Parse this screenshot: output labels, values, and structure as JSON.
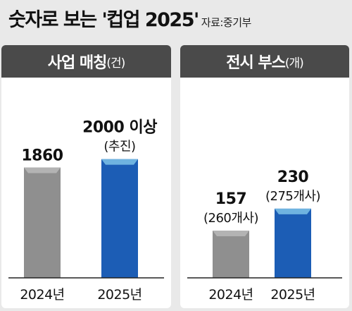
{
  "header": {
    "title": "숫자로 보는 '컵업 2025'",
    "source": "자료:중기부"
  },
  "colors": {
    "bar_2024": "#8f8f8f",
    "bar_2024_top": "#b3b3b3",
    "bar_2025": "#1c5db5",
    "bar_2025_top": "#6fb3e0",
    "panel_header": "#4a4a4a",
    "background": "#e9e9e9"
  },
  "chart_data": [
    {
      "type": "bar",
      "title": "사업 매칭",
      "unit": "(건)",
      "categories": [
        "2024년",
        "2025년"
      ],
      "values": [
        1860,
        2000
      ],
      "value_labels": [
        "1860",
        "2000 이상"
      ],
      "sub_labels": [
        "",
        "(추진)"
      ],
      "ylim": [
        0,
        2400
      ],
      "grid": false,
      "legend": "none"
    },
    {
      "type": "bar",
      "title": "전시 부스",
      "unit": "(개)",
      "categories": [
        "2024년",
        "2025년"
      ],
      "values": [
        157,
        230
      ],
      "value_labels": [
        "157",
        "230"
      ],
      "sub_labels": [
        "(260개사)",
        "(275개사)"
      ],
      "ylim": [
        0,
        300
      ],
      "grid": false,
      "legend": "none"
    }
  ]
}
